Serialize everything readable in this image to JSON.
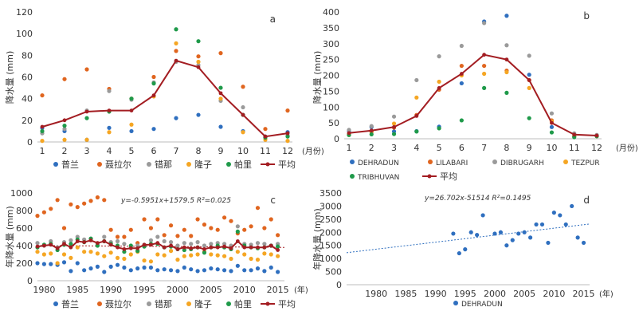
{
  "chart_data": [
    {
      "panel": "a",
      "type": "scatter+line",
      "ylabel": "降水量 (mm)",
      "xlabel": "(月份)",
      "ylim": [
        0,
        120
      ],
      "yticks": [
        0,
        20,
        40,
        60,
        80,
        100,
        120
      ],
      "xticks": [
        1,
        2,
        3,
        4,
        5,
        6,
        7,
        8,
        9,
        10,
        11,
        12
      ],
      "x": [
        1,
        2,
        3,
        4,
        5,
        6,
        7,
        8,
        9,
        10,
        11,
        12
      ],
      "series": [
        {
          "name": "普兰",
          "color": "#2f6fbf",
          "values": [
            13,
            10,
            2,
            13,
            10,
            12,
            22,
            25,
            14,
            10,
            5,
            9
          ]
        },
        {
          "name": "聂拉尔",
          "color": "#e0651f",
          "values": [
            43,
            58,
            67,
            49,
            40,
            60,
            84,
            79,
            82,
            51,
            12,
            29
          ]
        },
        {
          "name": "错那",
          "color": "#9a9a9a",
          "values": [
            8,
            12,
            29,
            47,
            39,
            55,
            74,
            71,
            38,
            32,
            5,
            6
          ]
        },
        {
          "name": "隆子",
          "color": "#f5a623",
          "values": [
            1,
            2,
            2,
            9,
            16,
            42,
            91,
            74,
            40,
            9,
            2,
            1
          ]
        },
        {
          "name": "帕里",
          "color": "#1f9a4a",
          "values": [
            10,
            15,
            22,
            28,
            40,
            54,
            104,
            93,
            50,
            25,
            4,
            5
          ]
        },
        {
          "name": "平均",
          "color": "#a31d22",
          "line": true,
          "values": [
            14,
            20,
            28,
            29,
            29,
            43,
            75,
            69,
            45,
            25,
            5,
            8
          ]
        }
      ]
    },
    {
      "panel": "b",
      "type": "scatter+line",
      "ylabel": "降水量 (mm)",
      "xlabel": "(月份)",
      "ylim": [
        0,
        400
      ],
      "yticks": [
        0,
        50,
        100,
        150,
        200,
        250,
        300,
        350,
        400
      ],
      "xticks": [
        1,
        2,
        3,
        4,
        5,
        6,
        7,
        8,
        9,
        10,
        11,
        12
      ],
      "x": [
        1,
        2,
        3,
        4,
        5,
        6,
        7,
        8,
        9,
        10,
        11,
        12
      ],
      "series": [
        {
          "name": "DEHRADUN",
          "color": "#2f6fbf",
          "values": [
            25,
            37,
            23,
            24,
            38,
            175,
            370,
            388,
            202,
            37,
            8,
            10
          ]
        },
        {
          "name": "LILABARI",
          "color": "#e0651f",
          "values": [
            15,
            22,
            35,
            75,
            155,
            230,
            230,
            215,
            185,
            58,
            8,
            9
          ]
        },
        {
          "name": "DIBRUGARH",
          "color": "#9a9a9a",
          "values": [
            28,
            40,
            70,
            185,
            260,
            293,
            365,
            295,
            262,
            80,
            17,
            12
          ]
        },
        {
          "name": "TEZPUR",
          "color": "#f5a623",
          "values": [
            12,
            25,
            48,
            130,
            180,
            200,
            205,
            210,
            160,
            55,
            8,
            8
          ]
        },
        {
          "name": "TRIBHUVAN",
          "color": "#1f9a4a",
          "values": [
            12,
            14,
            15,
            23,
            33,
            58,
            160,
            145,
            65,
            20,
            5,
            8
          ]
        },
        {
          "name": "平均",
          "color": "#a31d22",
          "line": true,
          "values": [
            18,
            26,
            37,
            72,
            160,
            205,
            265,
            250,
            185,
            50,
            13,
            10
          ]
        }
      ]
    },
    {
      "panel": "c",
      "type": "scatter+line",
      "ylabel": "年降水量 (mm)",
      "xlabel": "(年)",
      "ylim": [
        0,
        1000
      ],
      "yticks": [
        0,
        200,
        400,
        600,
        800,
        1000
      ],
      "xlim": [
        1979,
        2016
      ],
      "xticks": [
        1980,
        1985,
        1990,
        1995,
        2000,
        2005,
        2010,
        2015
      ],
      "annotation": "y=-0.5951x+1579.5    R²=0.025",
      "trend": {
        "slope": -0.5951,
        "intercept": 1579.5
      },
      "x": [
        1979,
        1980,
        1981,
        1982,
        1983,
        1984,
        1985,
        1986,
        1987,
        1988,
        1989,
        1990,
        1991,
        1992,
        1993,
        1994,
        1995,
        1996,
        1997,
        1998,
        1999,
        2000,
        2001,
        2002,
        2003,
        2004,
        2005,
        2006,
        2007,
        2008,
        2009,
        2010,
        2011,
        2012,
        2013,
        2014,
        2015
      ],
      "series": [
        {
          "name": "普兰",
          "color": "#2f6fbf",
          "values": [
            200,
            190,
            190,
            180,
            210,
            110,
            200,
            120,
            140,
            160,
            100,
            160,
            180,
            150,
            120,
            140,
            150,
            150,
            120,
            130,
            120,
            110,
            150,
            130,
            110,
            120,
            140,
            130,
            120,
            110,
            170,
            120,
            120,
            140,
            110,
            150,
            100
          ]
        },
        {
          "name": "聂拉尔",
          "color": "#e0651f",
          "values": [
            740,
            780,
            820,
            920,
            600,
            870,
            840,
            880,
            910,
            950,
            920,
            580,
            500,
            500,
            580,
            430,
            700,
            600,
            700,
            520,
            630,
            510,
            580,
            510,
            700,
            640,
            600,
            580,
            720,
            680,
            540,
            580,
            620,
            830,
            600,
            700,
            520
          ]
        },
        {
          "name": "错那",
          "color": "#9a9a9a",
          "values": [
            430,
            400,
            450,
            380,
            440,
            460,
            500,
            470,
            480,
            420,
            500,
            440,
            450,
            420,
            380,
            400,
            410,
            460,
            500,
            450,
            440,
            400,
            430,
            420,
            440,
            400,
            420,
            430,
            420,
            400,
            620,
            420,
            410,
            430,
            420,
            400,
            420
          ]
        },
        {
          "name": "隆子",
          "color": "#f5a623",
          "values": [
            330,
            300,
            310,
            200,
            300,
            260,
            380,
            330,
            330,
            310,
            280,
            320,
            260,
            250,
            300,
            330,
            230,
            220,
            300,
            290,
            340,
            240,
            280,
            290,
            300,
            330,
            300,
            290,
            280,
            250,
            330,
            300,
            250,
            240,
            310,
            300,
            280
          ]
        },
        {
          "name": "帕里",
          "color": "#1f9a4a",
          "values": [
            380,
            410,
            420,
            350,
            410,
            420,
            470,
            440,
            480,
            400,
            450,
            420,
            400,
            330,
            400,
            340,
            390,
            420,
            420,
            380,
            390,
            360,
            350,
            360,
            380,
            320,
            380,
            400,
            380,
            360,
            560,
            400,
            380,
            370,
            380,
            400,
            390
          ]
        },
        {
          "name": "平均",
          "color": "#a31d22",
          "line": true,
          "values": [
            390,
            400,
            410,
            370,
            420,
            380,
            450,
            440,
            460,
            430,
            450,
            410,
            380,
            360,
            370,
            370,
            410,
            410,
            430,
            380,
            400,
            360,
            380,
            370,
            380,
            360,
            380,
            380,
            390,
            370,
            450,
            380,
            380,
            380,
            380,
            400,
            350
          ]
        }
      ]
    },
    {
      "panel": "d",
      "type": "scatter",
      "ylabel": "年降水量 (mm)",
      "xlabel": "(年)",
      "ylim": [
        0,
        3500
      ],
      "yticks": [
        0,
        500,
        1000,
        1500,
        2000,
        2500,
        3000,
        3500
      ],
      "xlim": [
        1975,
        2016
      ],
      "xticks": [
        1980,
        1985,
        1990,
        1995,
        2000,
        2005,
        2010,
        2015
      ],
      "annotation": "y=26.702x-51514    R²=0.1495",
      "trend": {
        "slope": 26.702,
        "intercept": -51514
      },
      "series": [
        {
          "name": "DEHRADUN",
          "color": "#2f6fbf",
          "x": [
            1993,
            1994,
            1995,
            1996,
            1997,
            1998,
            2000,
            2001,
            2002,
            2003,
            2004,
            2005,
            2006,
            2007,
            2008,
            2009,
            2010,
            2011,
            2012,
            2013,
            2014,
            2015
          ],
          "values": [
            1950,
            1200,
            1350,
            2000,
            1900,
            2650,
            1950,
            2000,
            1500,
            1700,
            1950,
            2000,
            1800,
            2300,
            2300,
            1600,
            2750,
            2650,
            2300,
            3000,
            1800,
            1600
          ]
        }
      ]
    }
  ]
}
